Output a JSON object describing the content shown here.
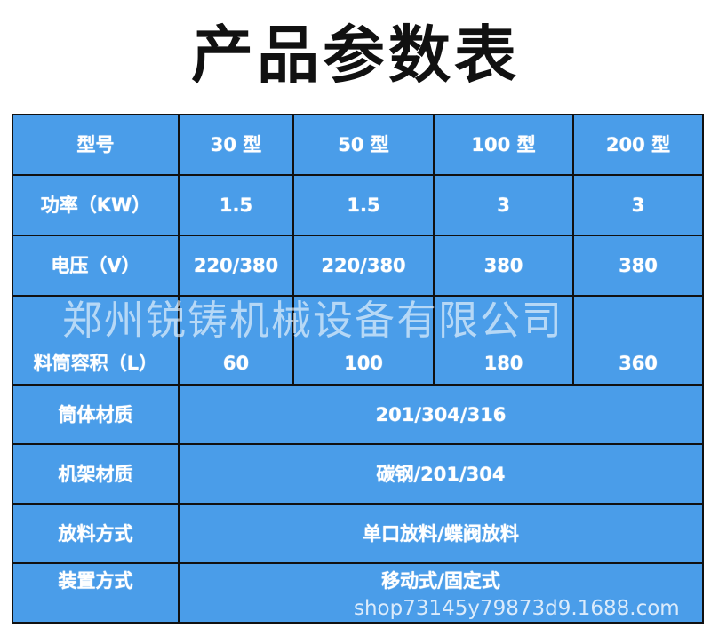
{
  "title": "产品参数表",
  "header": [
    "型号",
    "30 型",
    "50 型",
    "100 型",
    "200 型"
  ],
  "rows": [
    {
      "label": "功率（KW）",
      "values": [
        "1.5",
        "1.5",
        "3",
        "3"
      ]
    },
    {
      "label": "电压（V）",
      "values": [
        "220/380",
        "220/380",
        "380",
        "380"
      ]
    },
    {
      "label": "料筒容积（L）",
      "values": [
        "60",
        "100",
        "180",
        "360"
      ]
    }
  ],
  "merged_rows": [
    {
      "label": "筒体材质",
      "value": "201/304/316"
    },
    {
      "label": "机架材质",
      "value": "碳钢/201/304"
    },
    {
      "label": "放料方式",
      "value": "单口放料/蝶阀放料"
    },
    {
      "label": "装置方式",
      "value": "移动式/固定式"
    }
  ],
  "watermark": "郑州锐铸机械设备有限公司",
  "watermark_url": "shop73145y79873d9.1688.com",
  "colors": {
    "cell": "#4a9de9",
    "border": "#111111"
  }
}
